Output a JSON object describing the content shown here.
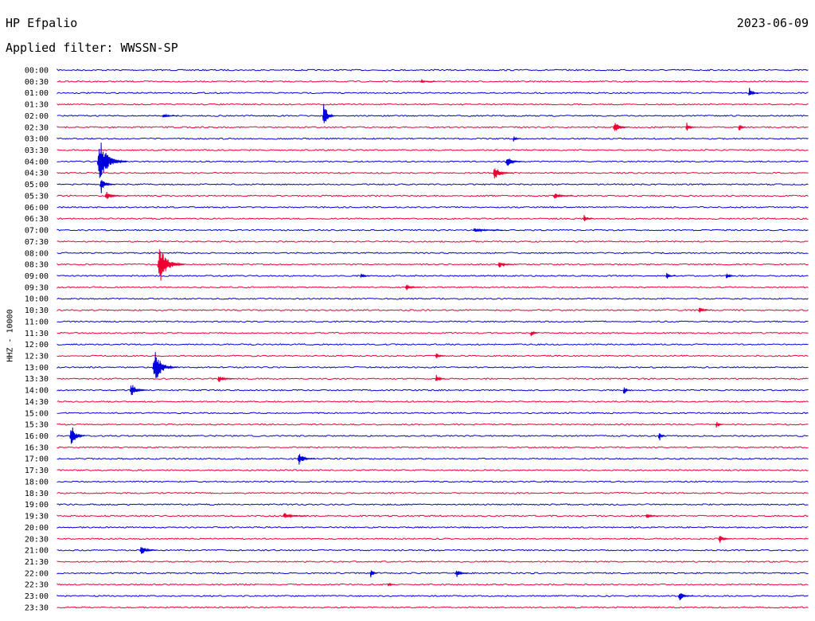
{
  "header": {
    "station": "HP Efpalio",
    "date": "2023-06-09",
    "filter": "Applied filter: WWSSN-SP"
  },
  "chart_data": {
    "type": "line",
    "title": "HP Efpalio",
    "ylabel": "HHZ - 10000",
    "x_axis": "time within each 30-minute row (minutes)",
    "x_range": [
      0,
      30
    ],
    "row_labels": [
      "00:00",
      "00:30",
      "01:00",
      "01:30",
      "02:00",
      "02:30",
      "03:00",
      "03:30",
      "04:00",
      "04:30",
      "05:00",
      "05:30",
      "06:00",
      "06:30",
      "07:00",
      "07:30",
      "08:00",
      "08:30",
      "09:00",
      "09:30",
      "10:00",
      "10:30",
      "11:00",
      "11:30",
      "12:00",
      "12:30",
      "13:00",
      "13:30",
      "14:00",
      "14:30",
      "15:00",
      "15:30",
      "16:00",
      "16:30",
      "17:00",
      "17:30",
      "18:00",
      "18:30",
      "19:00",
      "19:30",
      "20:00",
      "20:30",
      "21:00",
      "21:30",
      "22:00",
      "22:30",
      "23:00",
      "23:30"
    ],
    "row_colors": [
      "#0000dd",
      "#ee0033"
    ],
    "events": [
      {
        "row": "00:30",
        "minute": 14.5,
        "amp": 2,
        "dur": 0.6
      },
      {
        "row": "01:00",
        "minute": 27.6,
        "amp": 7,
        "dur": 0.4
      },
      {
        "row": "02:00",
        "minute": 10.6,
        "amp": 20,
        "dur": 0.5
      },
      {
        "row": "02:00",
        "minute": 4.2,
        "amp": 3,
        "dur": 0.6
      },
      {
        "row": "02:30",
        "minute": 22.2,
        "amp": 9,
        "dur": 0.6
      },
      {
        "row": "02:30",
        "minute": 25.1,
        "amp": 6,
        "dur": 0.4
      },
      {
        "row": "02:30",
        "minute": 27.2,
        "amp": 7,
        "dur": 0.3
      },
      {
        "row": "03:00",
        "minute": 18.2,
        "amp": 5,
        "dur": 0.3
      },
      {
        "row": "04:00",
        "minute": 1.6,
        "amp": 30,
        "dur": 1.2
      },
      {
        "row": "04:00",
        "minute": 17.9,
        "amp": 7,
        "dur": 0.7
      },
      {
        "row": "04:30",
        "minute": 17.4,
        "amp": 9,
        "dur": 0.8
      },
      {
        "row": "05:00",
        "minute": 1.7,
        "amp": 12,
        "dur": 0.6
      },
      {
        "row": "05:30",
        "minute": 1.9,
        "amp": 6,
        "dur": 0.7
      },
      {
        "row": "05:30",
        "minute": 19.8,
        "amp": 4,
        "dur": 0.8
      },
      {
        "row": "06:30",
        "minute": 21.0,
        "amp": 6,
        "dur": 0.4
      },
      {
        "row": "07:00",
        "minute": 16.6,
        "amp": 3,
        "dur": 1.2
      },
      {
        "row": "08:30",
        "minute": 4.0,
        "amp": 26,
        "dur": 1.1
      },
      {
        "row": "08:30",
        "minute": 17.6,
        "amp": 5,
        "dur": 0.6
      },
      {
        "row": "09:00",
        "minute": 12.1,
        "amp": 4,
        "dur": 0.4
      },
      {
        "row": "09:00",
        "minute": 24.3,
        "amp": 5,
        "dur": 0.4
      },
      {
        "row": "09:00",
        "minute": 26.7,
        "amp": 5,
        "dur": 0.4
      },
      {
        "row": "09:30",
        "minute": 13.9,
        "amp": 4,
        "dur": 0.6
      },
      {
        "row": "10:30",
        "minute": 25.6,
        "amp": 5,
        "dur": 0.5
      },
      {
        "row": "11:30",
        "minute": 18.9,
        "amp": 5,
        "dur": 0.3
      },
      {
        "row": "12:30",
        "minute": 15.1,
        "amp": 5,
        "dur": 0.4
      },
      {
        "row": "13:00",
        "minute": 3.8,
        "amp": 24,
        "dur": 1.0
      },
      {
        "row": "13:30",
        "minute": 6.4,
        "amp": 5,
        "dur": 0.7
      },
      {
        "row": "13:30",
        "minute": 15.1,
        "amp": 6,
        "dur": 0.4
      },
      {
        "row": "14:00",
        "minute": 2.9,
        "amp": 10,
        "dur": 0.7
      },
      {
        "row": "14:00",
        "minute": 22.6,
        "amp": 8,
        "dur": 0.3
      },
      {
        "row": "15:30",
        "minute": 26.3,
        "amp": 6,
        "dur": 0.3
      },
      {
        "row": "16:00",
        "minute": 0.5,
        "amp": 20,
        "dur": 0.6
      },
      {
        "row": "16:00",
        "minute": 24.0,
        "amp": 9,
        "dur": 0.3
      },
      {
        "row": "17:00",
        "minute": 9.6,
        "amp": 8,
        "dur": 0.7
      },
      {
        "row": "19:30",
        "minute": 9.0,
        "amp": 4,
        "dur": 1.0
      },
      {
        "row": "19:30",
        "minute": 23.5,
        "amp": 5,
        "dur": 0.5
      },
      {
        "row": "20:30",
        "minute": 26.4,
        "amp": 6,
        "dur": 0.5
      },
      {
        "row": "21:00",
        "minute": 3.3,
        "amp": 7,
        "dur": 0.7
      },
      {
        "row": "22:00",
        "minute": 12.5,
        "amp": 8,
        "dur": 0.3
      },
      {
        "row": "22:00",
        "minute": 15.9,
        "amp": 6,
        "dur": 0.5
      },
      {
        "row": "22:30",
        "minute": 13.2,
        "amp": 4,
        "dur": 0.3
      },
      {
        "row": "23:00",
        "minute": 24.8,
        "amp": 7,
        "dur": 0.6
      }
    ]
  }
}
